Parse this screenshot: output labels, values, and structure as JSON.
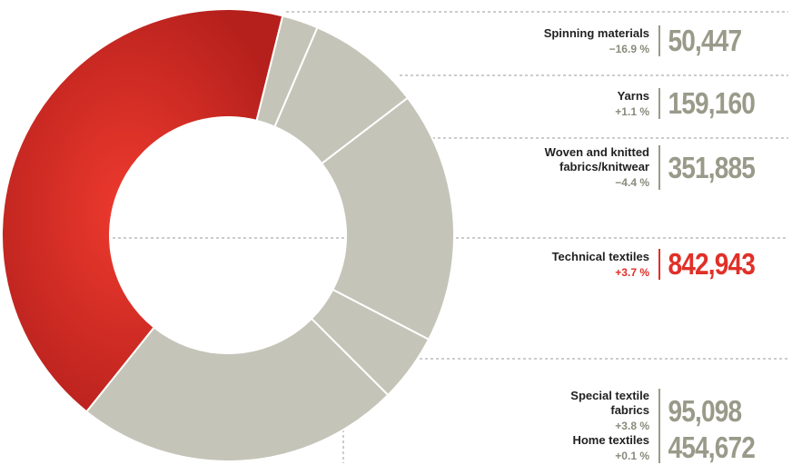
{
  "chart_data": {
    "type": "donut",
    "categories": [
      "Spinning materials",
      "Yarns",
      "Woven and knitted fabrics/knitwear",
      "Technical textiles",
      "Special textile fabrics",
      "Home textiles"
    ],
    "values": [
      50447,
      159160,
      351885,
      842943,
      95098,
      454672
    ],
    "value_labels": [
      "50,447",
      "159,160",
      "351,885",
      "842,943",
      "95,098",
      "454,672"
    ],
    "changes": [
      "−16.9 %",
      "+1.1 %",
      "−4.4 %",
      "+3.7 %",
      "+3.8 %",
      "+0.1 %"
    ],
    "slice_order": [
      0,
      1,
      2,
      4,
      5,
      3
    ],
    "highlight": 3,
    "color": "#c4c4b8",
    "highlight_color": "#e03028"
  }
}
